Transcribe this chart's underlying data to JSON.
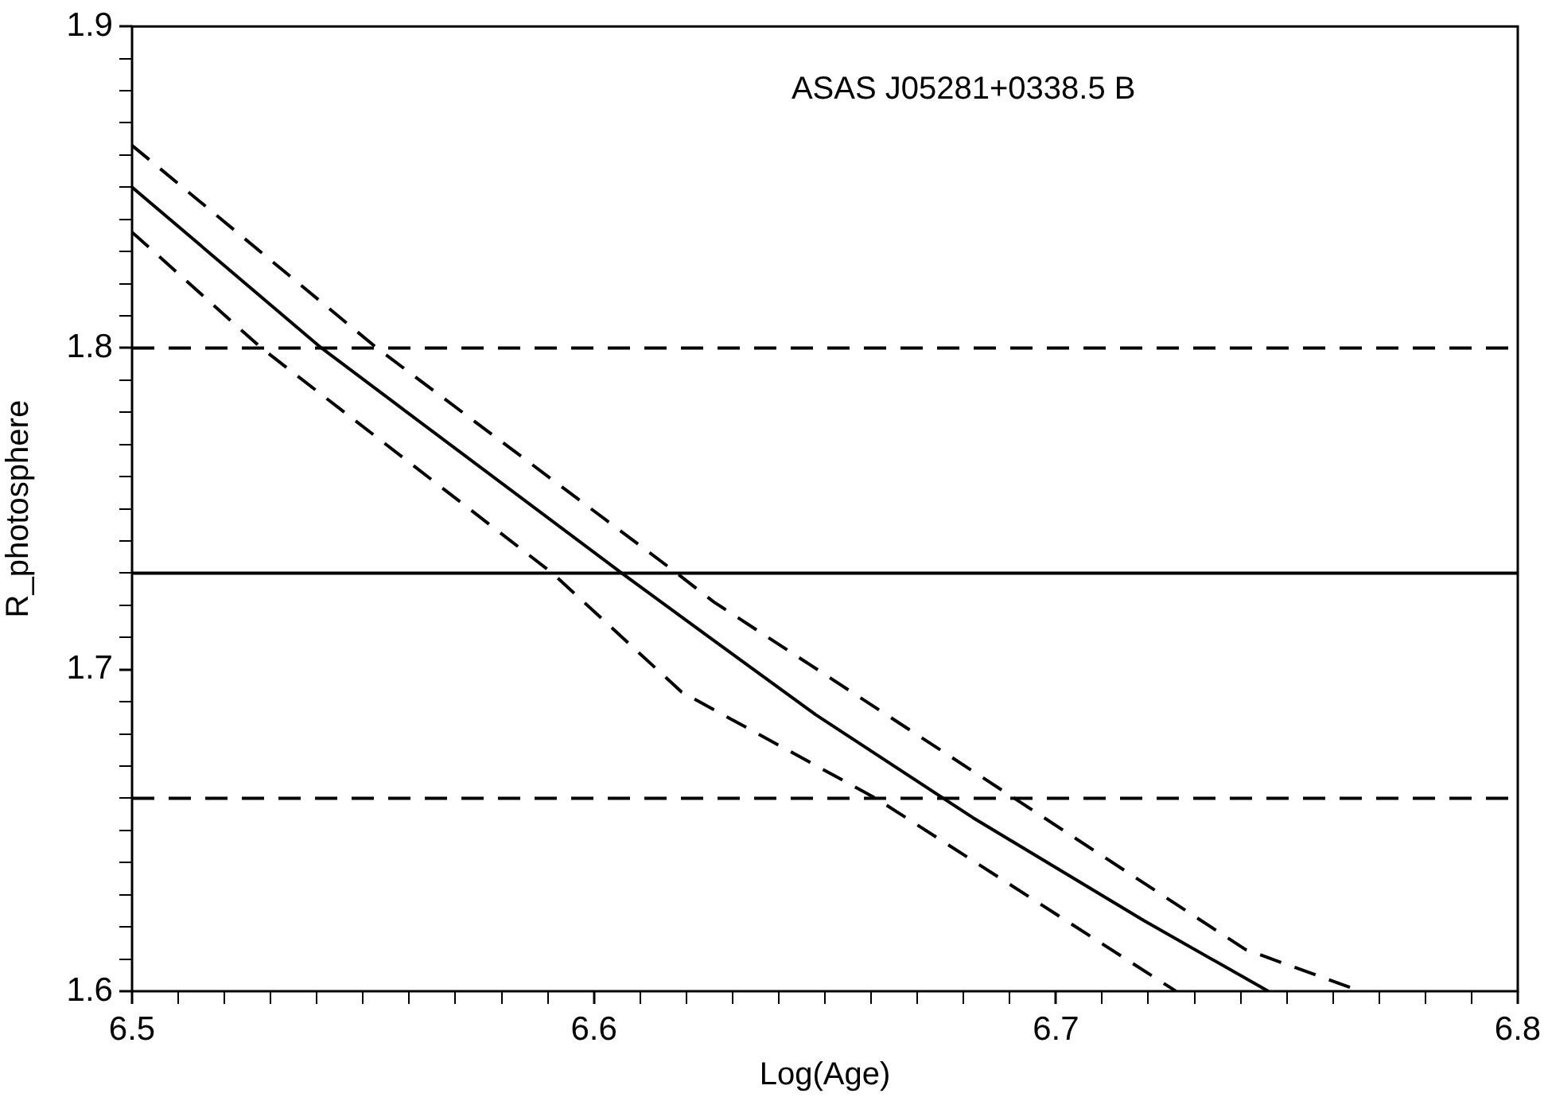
{
  "chart_data": {
    "type": "line",
    "title": "ASAS J05281+0338.5 B",
    "xlabel": "Log(Age)",
    "ylabel": "R_photosphere",
    "xlim": [
      6.5,
      6.8
    ],
    "ylim": [
      1.6,
      1.9
    ],
    "xticks": [
      6.5,
      {
        "value": 6.51,
        "label": null
      },
      {
        "value": 6.52,
        "label": null
      },
      {
        "value": 6.53,
        "label": null
      },
      {
        "value": 6.54,
        "label": null
      },
      {
        "value": 6.55,
        "label": null
      },
      {
        "value": 6.56,
        "label": null
      },
      {
        "value": 6.57,
        "label": null
      },
      {
        "value": 6.58,
        "label": null
      },
      {
        "value": 6.59,
        "label": null
      },
      6.6,
      {
        "value": 6.61,
        "label": null
      },
      {
        "value": 6.62,
        "label": null
      },
      {
        "value": 6.63,
        "label": null
      },
      {
        "value": 6.64,
        "label": null
      },
      {
        "value": 6.65,
        "label": null
      },
      {
        "value": 6.66,
        "label": null
      },
      {
        "value": 6.67,
        "label": null
      },
      {
        "value": 6.68,
        "label": null
      },
      {
        "value": 6.69,
        "label": null
      },
      6.7,
      {
        "value": 6.71,
        "label": null
      },
      {
        "value": 6.72,
        "label": null
      },
      {
        "value": 6.73,
        "label": null
      },
      {
        "value": 6.74,
        "label": null
      },
      {
        "value": 6.75,
        "label": null
      },
      {
        "value": 6.76,
        "label": null
      },
      {
        "value": 6.77,
        "label": null
      },
      {
        "value": 6.78,
        "label": null
      },
      {
        "value": 6.79,
        "label": null
      },
      6.8
    ],
    "yticks": [
      1.6,
      {
        "value": 1.61,
        "label": null
      },
      {
        "value": 1.62,
        "label": null
      },
      {
        "value": 1.63,
        "label": null
      },
      {
        "value": 1.64,
        "label": null
      },
      {
        "value": 1.65,
        "label": null
      },
      {
        "value": 1.66,
        "label": null
      },
      {
        "value": 1.67,
        "label": null
      },
      {
        "value": 1.68,
        "label": null
      },
      {
        "value": 1.69,
        "label": null
      },
      1.7,
      {
        "value": 1.71,
        "label": null
      },
      {
        "value": 1.72,
        "label": null
      },
      {
        "value": 1.73,
        "label": null
      },
      {
        "value": 1.74,
        "label": null
      },
      {
        "value": 1.75,
        "label": null
      },
      {
        "value": 1.76,
        "label": null
      },
      {
        "value": 1.77,
        "label": null
      },
      {
        "value": 1.78,
        "label": null
      },
      {
        "value": 1.79,
        "label": null
      },
      1.8,
      {
        "value": 1.81,
        "label": null
      },
      {
        "value": 1.82,
        "label": null
      },
      {
        "value": 1.83,
        "label": null
      },
      {
        "value": 1.84,
        "label": null
      },
      {
        "value": 1.85,
        "label": null
      },
      {
        "value": 1.86,
        "label": null
      },
      {
        "value": 1.87,
        "label": null
      },
      {
        "value": 1.88,
        "label": null
      },
      {
        "value": 1.89,
        "label": null
      },
      1.9
    ],
    "series": [
      {
        "color": "#000000",
        "line_style": "solid",
        "x": [
          6.5,
          6.541,
          6.606,
          6.626,
          6.648,
          6.682,
          6.719,
          6.746
        ],
        "values": [
          1.85,
          1.8,
          1.73,
          1.709,
          1.686,
          1.654,
          1.622,
          1.6
        ]
      },
      {
        "color": "#000000",
        "line_style": "dashed",
        "x": [
          6.5,
          6.553,
          6.617,
          6.626,
          6.691,
          6.741,
          6.766
        ],
        "values": [
          1.863,
          1.8,
          1.731,
          1.721,
          1.66,
          1.613,
          1.6
        ]
      },
      {
        "color": "#000000",
        "line_style": "dashed",
        "x": [
          6.5,
          6.528,
          6.591,
          6.619,
          6.661,
          6.726
        ],
        "values": [
          1.836,
          1.8,
          1.73,
          1.693,
          1.66,
          1.6
        ]
      }
    ],
    "ref_lines": [
      {
        "axis": "y",
        "value": 1.8,
        "color": "#000000",
        "line_style": "dashed"
      },
      {
        "axis": "y",
        "value": 1.73,
        "color": "#000000",
        "line_style": "solid"
      },
      {
        "axis": "y",
        "value": 1.66,
        "color": "#000000",
        "line_style": "dashed"
      }
    ],
    "grid": false,
    "legend": false,
    "marker": "none"
  }
}
